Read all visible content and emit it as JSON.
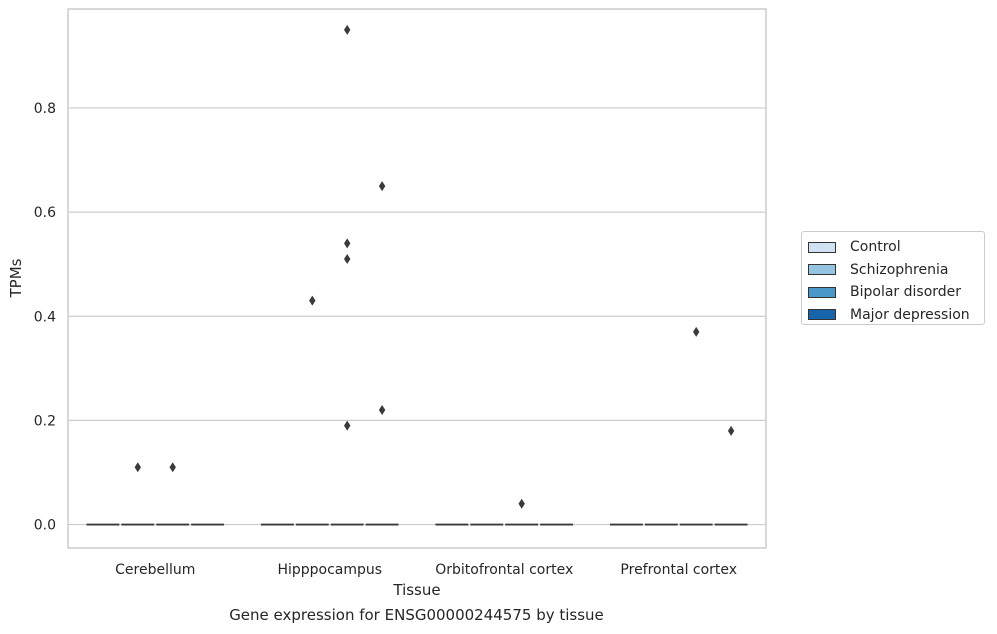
{
  "chart_data": {
    "type": "boxplot",
    "title": "",
    "caption": "Gene expression for ENSG00000244575 by tissue",
    "xlabel": "Tissue",
    "ylabel": "TPMs",
    "ylim": [
      -0.045,
      0.99
    ],
    "yticks": [
      0.0,
      0.2,
      0.4,
      0.6,
      0.8
    ],
    "ytick_labels": [
      "0.0",
      "0.2",
      "0.4",
      "0.6",
      "0.8"
    ],
    "grid": "horizontal",
    "legend_position": "right",
    "categories": [
      "Cerebellum",
      "Hipppocampus",
      "Orbitofrontal cortex",
      "Prefrontal cortex"
    ],
    "series": [
      {
        "name": "Control",
        "color": "#d0e1f2",
        "median": [
          0,
          0,
          0,
          0
        ],
        "outliers": [
          [],
          [],
          [],
          []
        ]
      },
      {
        "name": "Schizophrenia",
        "color": "#94c4df",
        "median": [
          0,
          0,
          0,
          0
        ],
        "outliers": [
          [
            0.11
          ],
          [
            0.43
          ],
          [],
          []
        ]
      },
      {
        "name": "Bipolar disorder",
        "color": "#4a98c9",
        "median": [
          0,
          0,
          0,
          0
        ],
        "outliers": [
          [
            0.11
          ],
          [
            0.19,
            0.51,
            0.54,
            0.95
          ],
          [
            0.04
          ],
          [
            0.37
          ]
        ]
      },
      {
        "name": "Major depression",
        "color": "#1764ab",
        "median": [
          0,
          0,
          0,
          0
        ],
        "outliers": [
          [],
          [
            0.22,
            0.65
          ],
          [],
          [
            0.18
          ]
        ]
      }
    ]
  }
}
